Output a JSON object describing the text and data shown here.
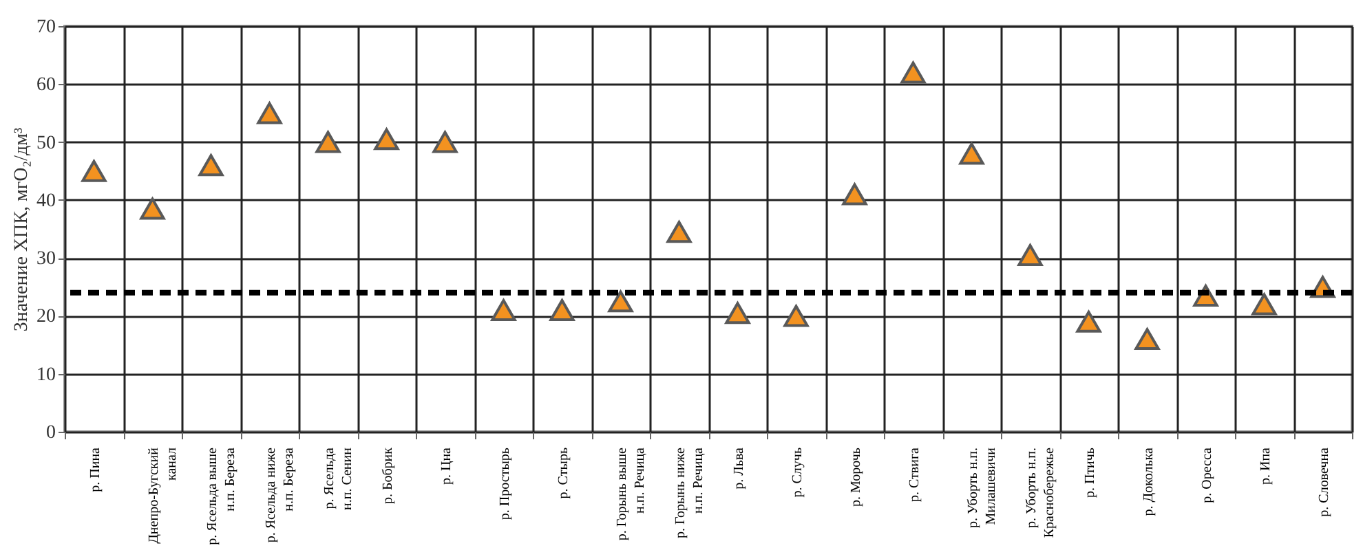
{
  "chart_data": {
    "type": "scatter",
    "ylabel": "Значение  ХПК, мгО₂/дм³",
    "categories": [
      "р. Пина",
      "Днепро-Бугский канал",
      "р. Ясельда выше н.п. Береза",
      "р. Ясельда ниже н.п. Береза",
      "р. Ясельда н.п. Сенин",
      "р. Бобрик",
      "р. Цна",
      "р. Простырь",
      "р. Стырь",
      "р. Горынь выше н.п. Речица",
      "р. Горынь ниже н.п. Речица",
      "р. Льва",
      "р. Случь",
      "р. Морочь",
      "р. Ствига",
      "р. Уборть н.п. Милашевичи",
      "р. Уборть н.п. Краснобережье",
      "р. Птичь",
      "р. Доколька",
      "р. Оресса",
      "р. Ипа",
      "р. Словечна"
    ],
    "series": [
      {
        "color": "#f39220",
        "values": [
          45,
          38.5,
          46,
          55,
          50,
          50.5,
          50,
          21,
          21,
          22.5,
          34.5,
          20.5,
          20,
          41,
          62,
          48,
          30.5,
          19,
          16,
          23.5,
          22,
          25
        ]
      }
    ],
    "marker": "triangle",
    "ylim": [
      0,
      70
    ],
    "yticks": [
      0,
      10,
      20,
      30,
      40,
      50,
      60,
      70
    ],
    "grid": true,
    "ref_lines": [
      {
        "axis": "y",
        "value": 24,
        "color": "#000000",
        "line_style": "dashed"
      }
    ]
  }
}
